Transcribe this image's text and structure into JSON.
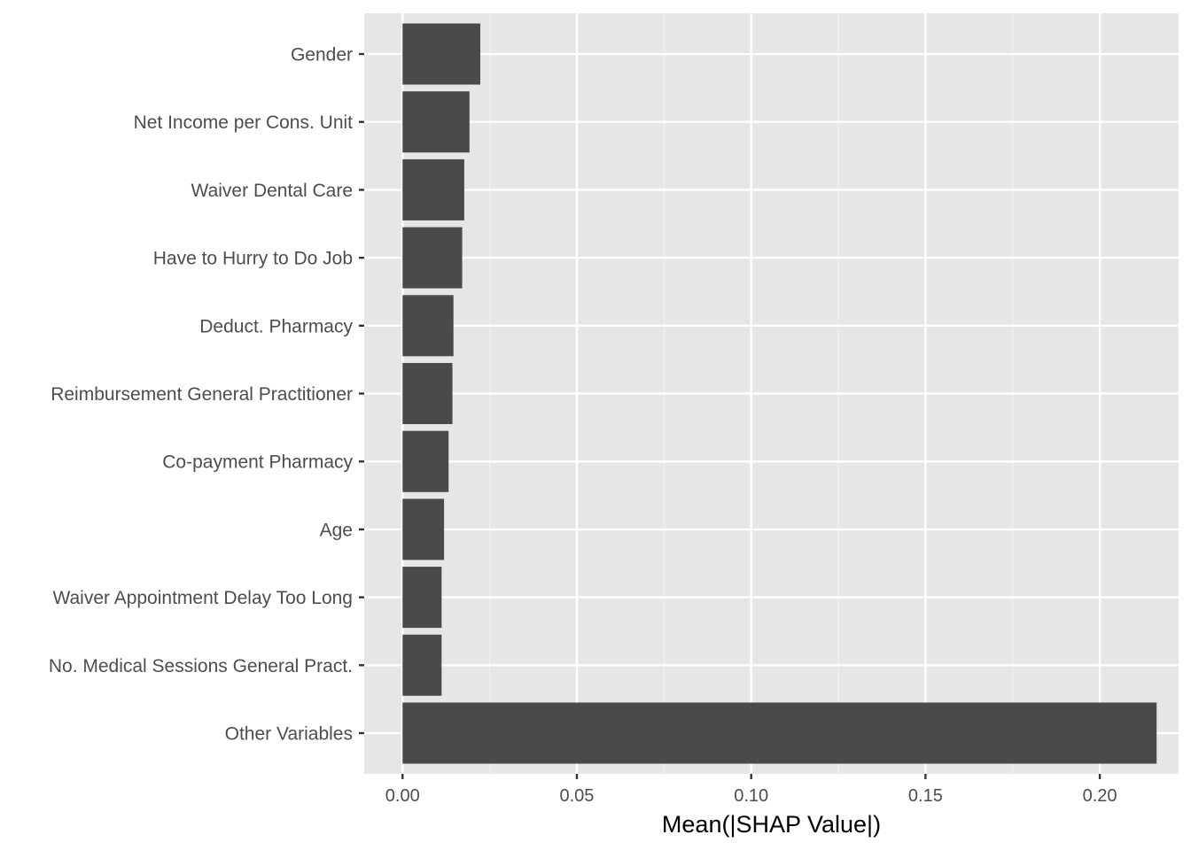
{
  "chart_data": {
    "type": "bar",
    "orientation": "horizontal",
    "title": "",
    "xlabel": "Mean(|SHAP Value|)",
    "ylabel": "",
    "xlim": [
      -0.011,
      0.2226
    ],
    "x_ticks": [
      0.0,
      0.05,
      0.1,
      0.15,
      0.2
    ],
    "x_tick_labels": [
      "0.00",
      "0.05",
      "0.10",
      "0.15",
      "0.20"
    ],
    "grid": true,
    "legend": "none",
    "categories": [
      "Gender",
      "Net Income per Cons. Unit",
      "Waiver Dental Care",
      "Have to Hurry to Do Job",
      "Deduct. Pharmacy",
      "Reimbursement General Practitioner",
      "Co-payment Pharmacy",
      "Age",
      "Waiver Appointment Delay Too Long",
      "No. Medical Sessions General Pract.",
      "Other Variables"
    ],
    "values": [
      0.0223,
      0.0192,
      0.0177,
      0.0171,
      0.0146,
      0.0143,
      0.0132,
      0.0119,
      0.0112,
      0.0112,
      0.2163
    ],
    "colors": {
      "bar": "#4a4a4a",
      "panel": "#e6e6e6",
      "grid_major": "#ffffff",
      "grid_minor": "#f0f0f0",
      "tick": "#333333"
    }
  }
}
